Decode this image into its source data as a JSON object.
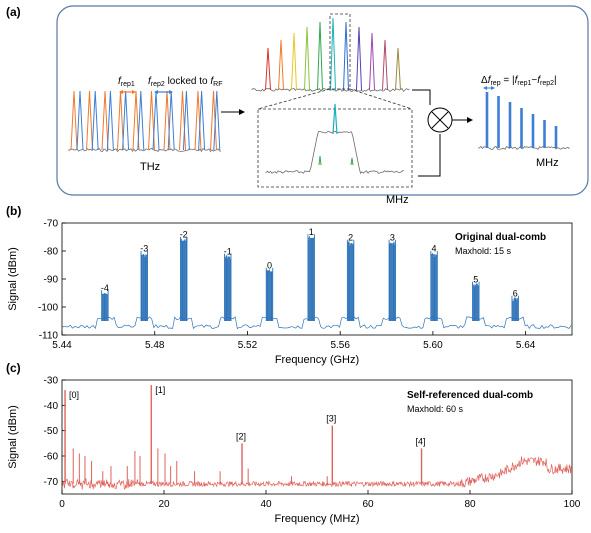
{
  "panels": {
    "a": {
      "label": "(a)",
      "thz_label": "THz",
      "mhz_label_box": "MHz",
      "mhz_label_out": "MHz",
      "frep1_main": "f",
      "frep1_sub": "rep1",
      "frep2_main": "f",
      "frep2_sub": "rep2",
      "locked_text": " locked to ",
      "frf_main": "f",
      "frf_sub": "RF",
      "delta_prefix": "Δ",
      "delta_main": "f",
      "delta_sub": "rep",
      "delta_eq": " = |",
      "delta_f1": "f",
      "delta_f1_sub": "rep1",
      "delta_minus": "−",
      "delta_f2": "f",
      "delta_f2_sub": "rep2",
      "delta_end": "|",
      "colors": {
        "box_border": "#5a78a6",
        "orange": "#f07a2c",
        "blue": "#3d7fd6",
        "gray": "#6d6d6d",
        "rainbow": [
          "#e0302a",
          "#f07a2c",
          "#e8c62a",
          "#8cc43c",
          "#2fa84f",
          "#1bb1b8",
          "#2c6fd1",
          "#5a3fb6",
          "#9a4ab0",
          "#b04a6a",
          "#9c8a3a"
        ]
      }
    },
    "b": {
      "label": "(b)"
    },
    "c": {
      "label": "(c)"
    }
  },
  "chart_data": [
    {
      "type": "line",
      "title": "Original dual-comb",
      "subtitle": "Maxhold: 15 s",
      "xlabel": "Frequency (GHz)",
      "ylabel": "Signal (dBm)",
      "xlim": [
        5.44,
        5.66
      ],
      "ylim": [
        -110,
        -70
      ],
      "xticks": [
        "5.44",
        "5.48",
        "5.52",
        "5.56",
        "5.60",
        "5.64"
      ],
      "xtick_values": [
        5.44,
        5.48,
        5.52,
        5.56,
        5.6,
        5.64
      ],
      "yticks": [
        "-110",
        "-100",
        "-90",
        "-80",
        "-70"
      ],
      "ytick_values": [
        -110,
        -100,
        -90,
        -80,
        -70
      ],
      "color": "#2e73b8",
      "noise_floor": -107,
      "comb_lines": [
        {
          "label": "-4",
          "x": 5.4585,
          "peak": -96
        },
        {
          "label": "-3",
          "x": 5.4755,
          "peak": -82
        },
        {
          "label": "-2",
          "x": 5.4925,
          "peak": -77
        },
        {
          "label": "-1",
          "x": 5.5115,
          "peak": -83
        },
        {
          "label": "0",
          "x": 5.5295,
          "peak": -88
        },
        {
          "label": "1",
          "x": 5.5475,
          "peak": -76
        },
        {
          "label": "2",
          "x": 5.5645,
          "peak": -78
        },
        {
          "label": "3",
          "x": 5.5825,
          "peak": -78
        },
        {
          "label": "4",
          "x": 5.6005,
          "peak": -82
        },
        {
          "label": "5",
          "x": 5.6185,
          "peak": -93
        },
        {
          "label": "6",
          "x": 5.6355,
          "peak": -98
        }
      ]
    },
    {
      "type": "line",
      "title": "Self-referenced dual-comb",
      "subtitle": "Maxhold: 60 s",
      "xlabel": "Frequency (MHz)",
      "ylabel": "Signal (dBm)",
      "xlim": [
        0,
        100
      ],
      "ylim": [
        -75,
        -30
      ],
      "xticks": [
        "0",
        "20",
        "40",
        "60",
        "80",
        "100"
      ],
      "xtick_values": [
        0,
        20,
        40,
        60,
        80,
        100
      ],
      "yticks": [
        "-70",
        "-60",
        "-50",
        "-40",
        "-30"
      ],
      "ytick_values": [
        -70,
        -60,
        -50,
        -40,
        -30
      ],
      "color": "#e0625c",
      "noise_floor": -71,
      "peaks": [
        {
          "label": "[0]",
          "x": 0.6,
          "peak": -34
        },
        {
          "label": "[1]",
          "x": 17.5,
          "peak": -32
        },
        {
          "label": "[2]",
          "x": 35.3,
          "peak": -55
        },
        {
          "label": "[3]",
          "x": 53.0,
          "peak": -48
        },
        {
          "label": "[4]",
          "x": 70.5,
          "peak": -57
        }
      ],
      "spurs": [
        {
          "x": 2.2,
          "peak": -57
        },
        {
          "x": 3.4,
          "peak": -59
        },
        {
          "x": 4.5,
          "peak": -60
        },
        {
          "x": 5.8,
          "peak": -62
        },
        {
          "x": 8.0,
          "peak": -66
        },
        {
          "x": 9.6,
          "peak": -64
        },
        {
          "x": 12.8,
          "peak": -64
        },
        {
          "x": 14.3,
          "peak": -58
        },
        {
          "x": 15.3,
          "peak": -60
        },
        {
          "x": 18.8,
          "peak": -57
        },
        {
          "x": 20.2,
          "peak": -59
        },
        {
          "x": 21.3,
          "peak": -64
        },
        {
          "x": 22.5,
          "peak": -62
        },
        {
          "x": 26.0,
          "peak": -66
        },
        {
          "x": 31.0,
          "peak": -66
        },
        {
          "x": 36.5,
          "peak": -65
        },
        {
          "x": 45.0,
          "peak": -68
        },
        {
          "x": 52.0,
          "peak": -68
        }
      ]
    }
  ]
}
